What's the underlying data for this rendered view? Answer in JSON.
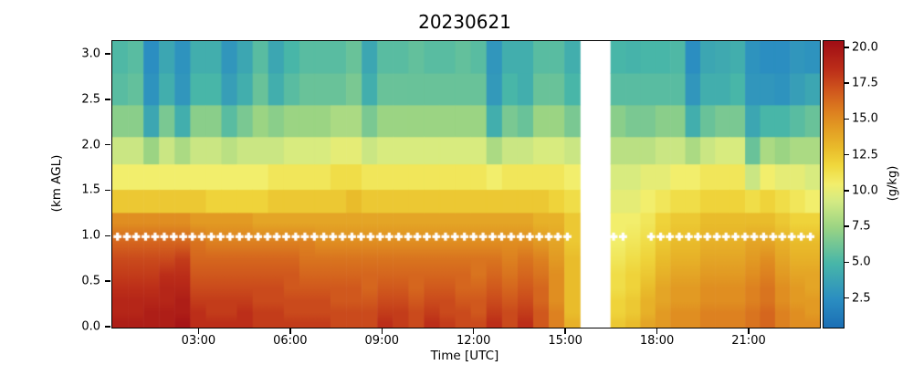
{
  "title": "20230621",
  "axes": {
    "xlabel": "Time [UTC]",
    "ylabel": "(km AGL)",
    "xticks": [
      {
        "h": 3,
        "label": "03:00"
      },
      {
        "h": 6,
        "label": "06:00"
      },
      {
        "h": 9,
        "label": "09:00"
      },
      {
        "h": 12,
        "label": "12:00"
      },
      {
        "h": 15,
        "label": "15:00"
      },
      {
        "h": 18,
        "label": "18:00"
      },
      {
        "h": 21,
        "label": "21:00"
      }
    ],
    "yticks": [
      {
        "km": 0.0,
        "label": "0.0"
      },
      {
        "km": 0.5,
        "label": "0.5"
      },
      {
        "km": 1.0,
        "label": "1.0"
      },
      {
        "km": 1.5,
        "label": "1.5"
      },
      {
        "km": 2.0,
        "label": "2.0"
      },
      {
        "km": 2.5,
        "label": "2.5"
      },
      {
        "km": 3.0,
        "label": "3.0"
      }
    ]
  },
  "colorbar": {
    "label": "(g/kg)",
    "vmin": 0.5,
    "vmax": 20.5,
    "ticks": [
      {
        "v": 20.0,
        "label": "20.0"
      },
      {
        "v": 17.5,
        "label": "17.5"
      },
      {
        "v": 15.0,
        "label": "15.0"
      },
      {
        "v": 12.5,
        "label": "12.5"
      },
      {
        "v": 10.0,
        "label": "10.0"
      },
      {
        "v": 7.5,
        "label": "7.5"
      },
      {
        "v": 5.0,
        "label": "5.0"
      },
      {
        "v": 2.5,
        "label": "2.5"
      }
    ],
    "stops": [
      [
        0.0,
        "#1b6fb5"
      ],
      [
        0.1,
        "#2b8ec1"
      ],
      [
        0.225,
        "#48b6a8"
      ],
      [
        0.35,
        "#9bd483"
      ],
      [
        0.44,
        "#d3ea83"
      ],
      [
        0.5,
        "#f2ee6c"
      ],
      [
        0.565,
        "#f0d83d"
      ],
      [
        0.625,
        "#e9bc2b"
      ],
      [
        0.7,
        "#e29a23"
      ],
      [
        0.76,
        "#dc7c1f"
      ],
      [
        0.83,
        "#cf551d"
      ],
      [
        0.9,
        "#bc2e19"
      ],
      [
        1.0,
        "#a00d15"
      ]
    ]
  },
  "chart_data": {
    "type": "heatmap",
    "title": "20230621",
    "xlabel": "Time [UTC]",
    "ylabel": "(km AGL)",
    "units": "g/kg",
    "xlim_hours": [
      0.15,
      23.3
    ],
    "ylim_km": [
      0,
      3.15
    ],
    "clim": [
      0.5,
      20.5
    ],
    "grid": false,
    "smooth_below_km": 1.26,
    "alt_edges_km": [
      0,
      0.1,
      0.22,
      0.35,
      0.5,
      0.66,
      0.84,
      1.04,
      1.26,
      1.52,
      1.8,
      2.1,
      2.45,
      2.8,
      3.15
    ],
    "gap": {
      "t_start": 15.45,
      "t_end": 16.45
    },
    "segments": [
      {
        "t_start": 0.15,
        "t_end": 15.45,
        "columns": [
          [
            19.5,
            19,
            19,
            18.5,
            18,
            17.5,
            16.5,
            15,
            12.5,
            10.5,
            9,
            7,
            5.5,
            5.2
          ],
          [
            19.5,
            19,
            19,
            18.5,
            18,
            17.5,
            16.5,
            15,
            12.5,
            10.5,
            9,
            7,
            5.8,
            5.5
          ],
          [
            19.5,
            19.5,
            19,
            18.5,
            18,
            17.5,
            16.5,
            15,
            12.5,
            10.5,
            7.5,
            4,
            2.8,
            2.5
          ],
          [
            19.5,
            19.5,
            19,
            19,
            18.5,
            17.5,
            16.5,
            15,
            12.5,
            10.5,
            9,
            6.5,
            4.5,
            4
          ],
          [
            20,
            19.5,
            19.5,
            19,
            18.5,
            18,
            16.5,
            15,
            12.5,
            10.5,
            8,
            4.5,
            3,
            2.8
          ],
          [
            18.5,
            18.5,
            18,
            17.5,
            17,
            16.5,
            16,
            14.5,
            12.5,
            10.5,
            9,
            7,
            5,
            4.5
          ],
          [
            18.5,
            18,
            18,
            17.5,
            17,
            16.5,
            15.5,
            14.5,
            12,
            10.5,
            9,
            7,
            5,
            4.5
          ],
          [
            18.5,
            18,
            18,
            17.5,
            17,
            16.5,
            15.5,
            14.5,
            12,
            10.5,
            8.5,
            5.5,
            3.5,
            3
          ],
          [
            18.5,
            18.5,
            18,
            17.5,
            17,
            16.5,
            15.5,
            14.5,
            12,
            10.5,
            9,
            6.5,
            4.5,
            4
          ],
          [
            18,
            18,
            17.5,
            17.5,
            17,
            16.5,
            15.5,
            14,
            12,
            10.5,
            9,
            7.5,
            6,
            5.5
          ],
          [
            18,
            18,
            17.5,
            17.5,
            17,
            16.5,
            15.5,
            14,
            12.5,
            11,
            9,
            7,
            4.5,
            4
          ],
          [
            18,
            17.5,
            17.5,
            17,
            17,
            16.5,
            15.5,
            14,
            12.5,
            11,
            9.5,
            7.5,
            5.5,
            5
          ],
          [
            18,
            17.5,
            17.5,
            17,
            16.5,
            16,
            15.5,
            14,
            12.5,
            11,
            9.5,
            7.5,
            6,
            5.5
          ],
          [
            18,
            17.5,
            17.5,
            17,
            16.5,
            16,
            15,
            14,
            12.5,
            11,
            9.5,
            7.5,
            6,
            5.5
          ],
          [
            17.5,
            17.5,
            17,
            17,
            16.5,
            16,
            15,
            14,
            12.5,
            11.5,
            10,
            8,
            6,
            5.5
          ],
          [
            17.5,
            17.5,
            17,
            17,
            16.5,
            16,
            15,
            14,
            13,
            11.5,
            10,
            8,
            6.5,
            6
          ],
          [
            17.5,
            17.5,
            17,
            16.5,
            16.5,
            16,
            15,
            14,
            12.5,
            11,
            9,
            6.5,
            4.5,
            4
          ],
          [
            18.5,
            18,
            17.5,
            17,
            16.5,
            16,
            15,
            14,
            12.5,
            11,
            9.5,
            7.5,
            6,
            5.5
          ],
          [
            18,
            18,
            17.5,
            17,
            16.5,
            16,
            15,
            14,
            12.5,
            11,
            9.5,
            7.5,
            6,
            5.5
          ],
          [
            17.5,
            17.5,
            17,
            16.5,
            16.5,
            16,
            15,
            14,
            12.5,
            11,
            9.5,
            7.5,
            6,
            5.8
          ],
          [
            18.5,
            18,
            17.5,
            17,
            16.5,
            16,
            15,
            14,
            12.5,
            11,
            9.5,
            7.5,
            6,
            5.5
          ],
          [
            18,
            17.5,
            17.5,
            17,
            16.5,
            16,
            15,
            14,
            12.5,
            11,
            9.5,
            7.5,
            6,
            5.5
          ],
          [
            17.5,
            17.5,
            17,
            16.5,
            16.5,
            16,
            15,
            14,
            12.5,
            11,
            9.5,
            7.5,
            6,
            5.8
          ],
          [
            17.5,
            17,
            17,
            16.5,
            16,
            16,
            15,
            14,
            12.5,
            11,
            9.5,
            7.5,
            6,
            5.5
          ],
          [
            18.5,
            18,
            17.5,
            17,
            16.5,
            16,
            15,
            14,
            12.5,
            10.5,
            8,
            4.5,
            3.2,
            3
          ],
          [
            17.5,
            17.5,
            17,
            16.5,
            16,
            15.5,
            15,
            14,
            12.5,
            11,
            9,
            6.5,
            5,
            4.5
          ],
          [
            18.5,
            18,
            17.5,
            17,
            16.5,
            16,
            15,
            14,
            12.5,
            11,
            9,
            6,
            4.5,
            4.5
          ],
          [
            17,
            17,
            16.5,
            16.5,
            16,
            15.5,
            14.5,
            13.5,
            12.5,
            11,
            9.5,
            7.5,
            6,
            5.5
          ],
          [
            15.5,
            15.5,
            15,
            15,
            15,
            14.5,
            14,
            13.5,
            12,
            11,
            9.5,
            7.5,
            6,
            5.5
          ],
          [
            13.5,
            13,
            13,
            13,
            13,
            13,
            12.5,
            12.5,
            11.5,
            10.5,
            9,
            6.5,
            5,
            4.5
          ]
        ]
      },
      {
        "t_start": 16.45,
        "t_end": 23.3,
        "columns": [
          [
            12.5,
            12,
            12,
            11.5,
            11.5,
            11,
            10.5,
            10.5,
            10,
            9.5,
            8.5,
            7,
            5.5,
            5
          ],
          [
            13,
            12.5,
            12.5,
            12,
            12,
            11.5,
            11,
            10.5,
            10,
            9.5,
            8.5,
            6.5,
            5.5,
            4.8
          ],
          [
            14,
            13.5,
            13.5,
            13,
            12.5,
            12,
            11.5,
            11,
            10.5,
            10,
            8.5,
            6.5,
            5.5,
            5
          ],
          [
            14.5,
            14.5,
            14,
            14,
            13.5,
            13,
            12.5,
            12,
            11,
            10,
            9,
            7,
            5.5,
            5
          ],
          [
            15,
            15,
            14.5,
            14.5,
            14,
            13.5,
            13,
            12.5,
            11.5,
            10.5,
            9,
            7,
            5.5,
            5.2
          ],
          [
            15,
            15,
            14.5,
            14.5,
            14,
            13.5,
            13,
            12.5,
            11.5,
            10.5,
            8,
            4.5,
            3,
            2.5
          ],
          [
            15.5,
            15.5,
            15,
            15,
            14.5,
            14,
            13.5,
            13,
            12,
            11,
            9,
            6,
            4.5,
            4
          ],
          [
            15.5,
            15.5,
            15,
            15,
            14.5,
            14,
            13.5,
            13,
            12,
            11,
            9.5,
            6.5,
            4.5,
            4.2
          ],
          [
            15.5,
            15.5,
            15,
            15,
            14.5,
            14,
            13.5,
            13,
            12,
            11,
            9.5,
            6.5,
            5,
            4.5
          ],
          [
            16,
            16,
            15.5,
            15.5,
            15,
            14.5,
            14,
            13,
            11.5,
            9,
            6,
            4,
            3,
            2.8
          ],
          [
            16.5,
            16.5,
            16,
            16,
            15.5,
            15,
            14,
            13,
            12,
            10.5,
            8,
            5,
            3,
            2.5
          ],
          [
            15.5,
            15.5,
            15,
            15,
            14.5,
            14,
            13.5,
            12.5,
            11.5,
            10,
            7.5,
            5,
            2.8,
            2.5
          ],
          [
            15,
            15,
            14.5,
            14.5,
            14,
            13.5,
            13,
            12,
            11,
            10,
            8,
            5.5,
            3.5,
            3
          ],
          [
            15,
            14.5,
            14.5,
            14,
            14,
            13.5,
            13,
            12,
            10.5,
            9.5,
            8,
            6,
            4,
            2.8
          ]
        ]
      }
    ],
    "markers": {
      "description": "white plus markers",
      "altitude_km": 1.0,
      "color": "#ffffff",
      "times_hours": [
        0.32,
        0.63,
        0.93,
        1.24,
        1.55,
        1.85,
        2.16,
        2.47,
        2.77,
        3.08,
        3.39,
        3.69,
        4.0,
        4.31,
        4.61,
        4.92,
        5.23,
        5.53,
        5.84,
        6.15,
        6.45,
        6.76,
        7.07,
        7.37,
        7.68,
        7.99,
        8.29,
        8.6,
        8.91,
        9.21,
        9.52,
        9.83,
        10.13,
        10.44,
        10.75,
        11.05,
        11.36,
        11.67,
        11.97,
        12.28,
        12.59,
        12.89,
        13.2,
        13.51,
        13.81,
        14.12,
        14.43,
        14.73,
        15.04,
        16.55,
        16.86,
        17.78,
        18.09,
        18.39,
        18.7,
        19.01,
        19.31,
        19.62,
        19.93,
        20.23,
        20.54,
        20.85,
        21.15,
        21.46,
        21.77,
        22.07,
        22.38,
        22.69,
        22.99
      ]
    }
  }
}
